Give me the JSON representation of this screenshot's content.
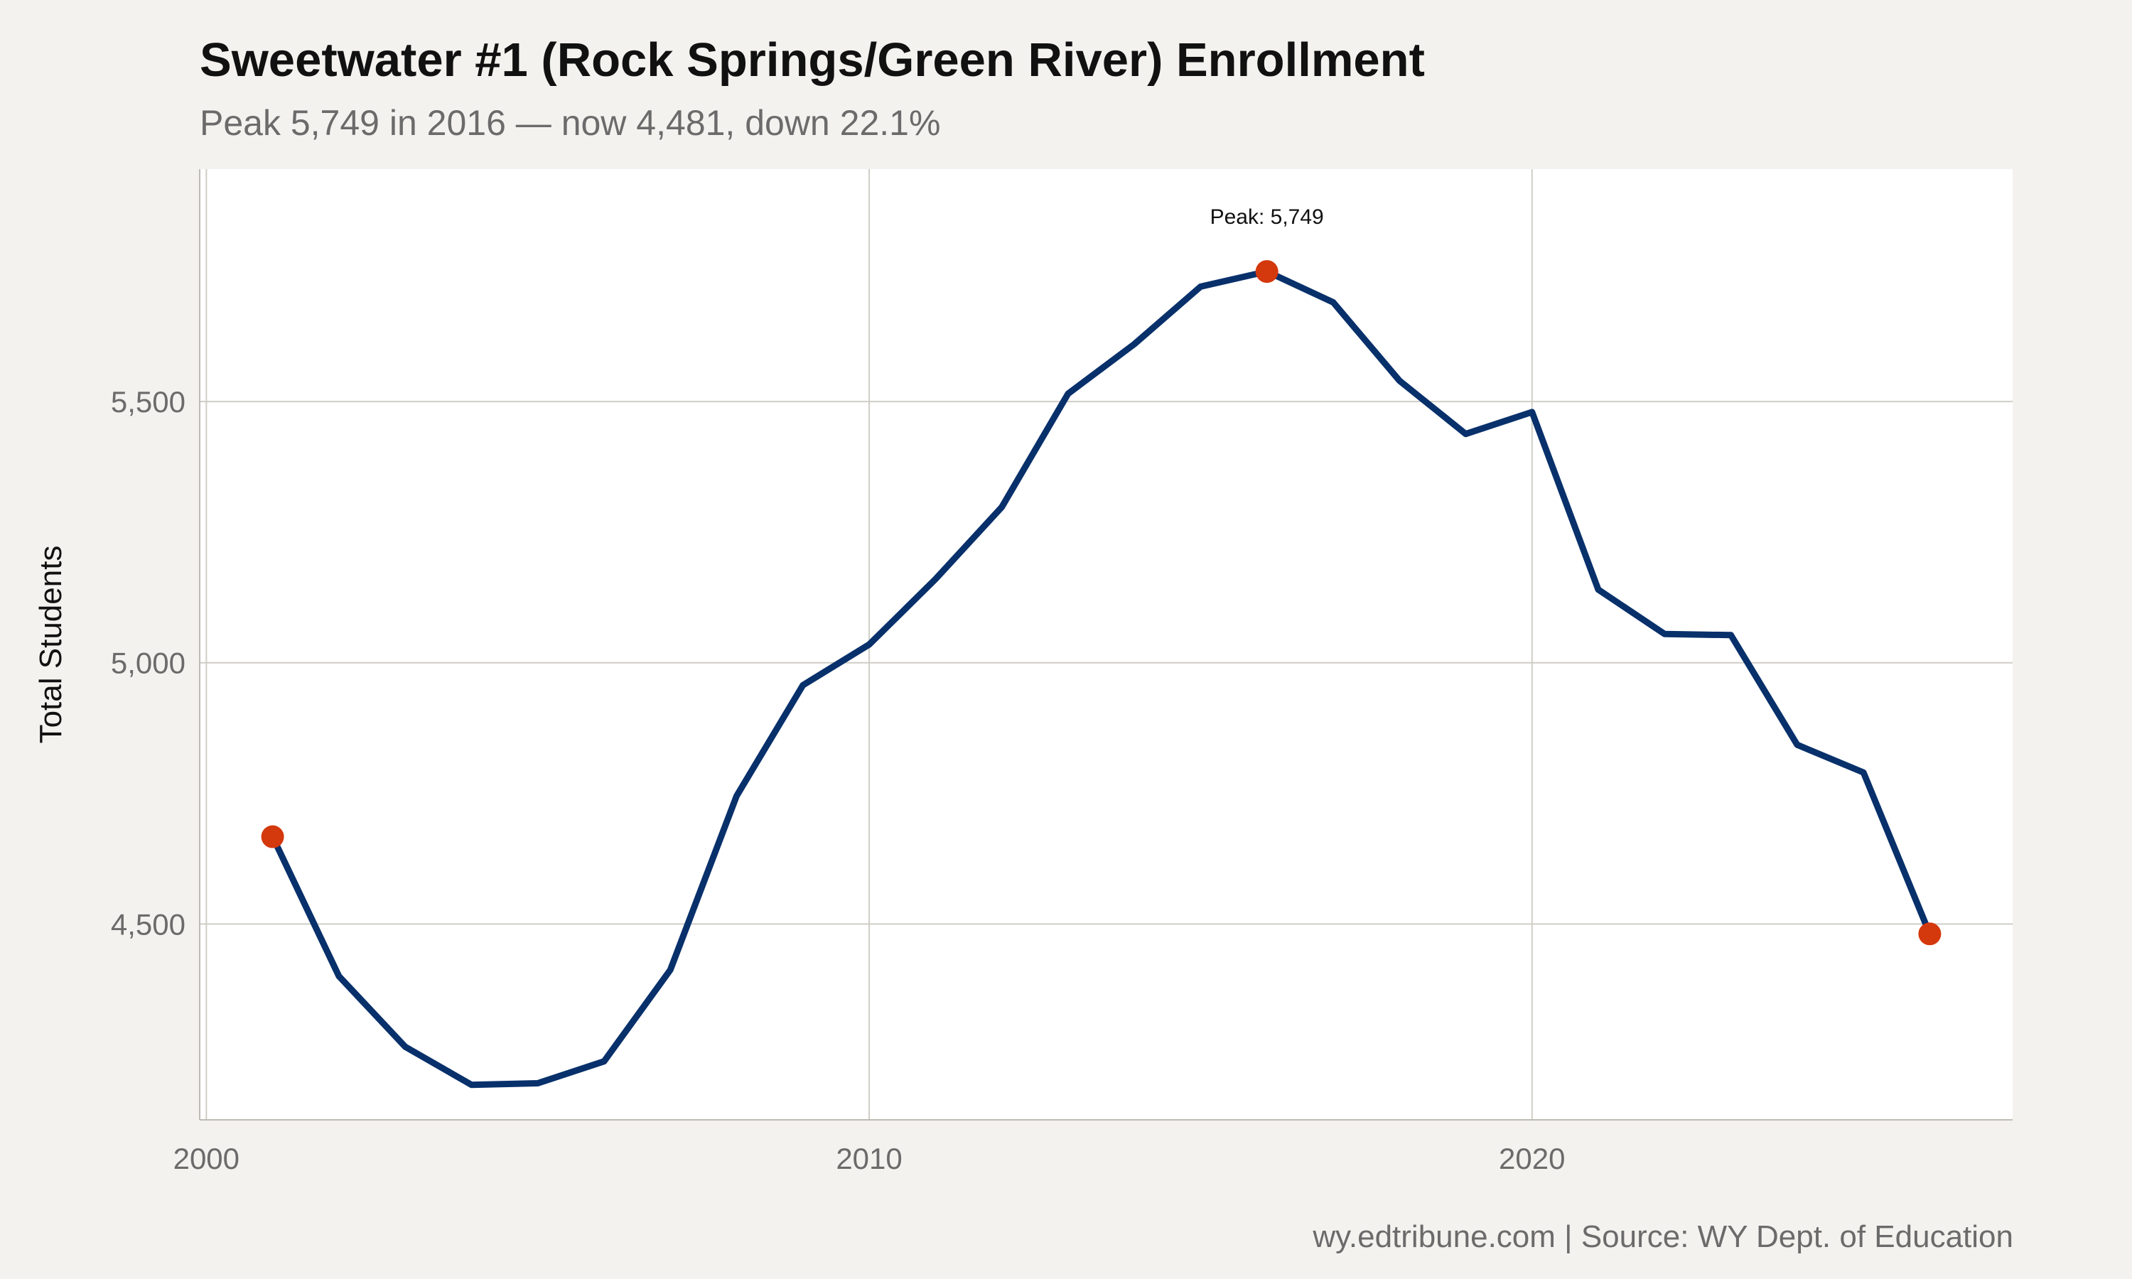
{
  "chart_data": {
    "type": "line",
    "title": "Sweetwater #1 (Rock Springs/Green River) Enrollment",
    "subtitle": "Peak 5,749 in 2016 — now 4,481, down 22.1%",
    "caption": "wy.edtribune.com | Source: WY Dept. of Education",
    "xlabel": "",
    "ylabel": "Total Students",
    "xlim": [
      1999.9,
      2027.25
    ],
    "ylim": [
      4125,
      5945
    ],
    "x_ticks": [
      2000,
      2010,
      2020
    ],
    "x_tick_labels": [
      "2000",
      "2010",
      "2020"
    ],
    "y_ticks": [
      4500,
      5000,
      5500
    ],
    "y_tick_labels": [
      "4,500",
      "5,000",
      "5,500"
    ],
    "grid": true,
    "line_color": "#08306b",
    "marker_color": "#d4380d",
    "series": [
      {
        "x": [
          2001,
          2002,
          2003,
          2004,
          2005,
          2006,
          2007,
          2008,
          2009,
          2010,
          2011,
          2012,
          2013,
          2014,
          2015,
          2016,
          2017,
          2018,
          2019,
          2020,
          2021,
          2022,
          2023,
          2024,
          2025,
          2026
        ],
        "values": [
          4667,
          4400,
          4265,
          4192,
          4195,
          4237,
          4412,
          4745,
          4957,
          5035,
          5160,
          5298,
          5515,
          5610,
          5720,
          5749,
          5690,
          5540,
          5438,
          5480,
          5140,
          5055,
          5053,
          4843,
          4790,
          4481
        ]
      }
    ],
    "highlight_points": [
      {
        "x": 2001,
        "y": 4667
      },
      {
        "x": 2016,
        "y": 5749
      },
      {
        "x": 2026,
        "y": 4481
      }
    ],
    "annotations": [
      {
        "text": "Peak: 5,749",
        "x": 2016,
        "y": 5749
      }
    ]
  }
}
